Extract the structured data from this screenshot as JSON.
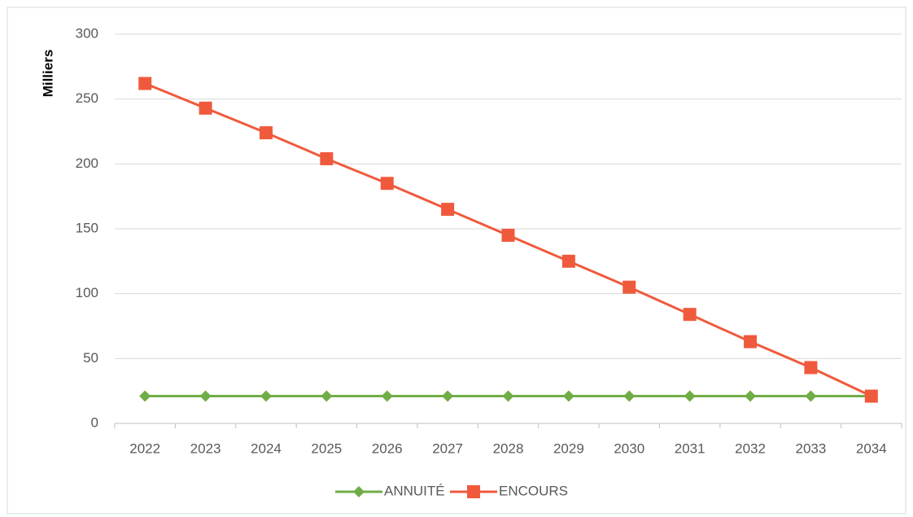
{
  "chart_data": {
    "type": "line",
    "y_label": "Milliers",
    "categories": [
      "2022",
      "2023",
      "2024",
      "2025",
      "2026",
      "2027",
      "2028",
      "2029",
      "2030",
      "2031",
      "2032",
      "2033",
      "2034"
    ],
    "series": [
      {
        "name": "ANNUITÉ",
        "color": "#70ad47",
        "marker": "diamond",
        "values": [
          21,
          21,
          21,
          21,
          21,
          21,
          21,
          21,
          21,
          21,
          21,
          21,
          21
        ]
      },
      {
        "name": "ENCOURS",
        "color": "#f05a3c",
        "marker": "square",
        "values": [
          262,
          243,
          224,
          204,
          185,
          165,
          145,
          125,
          105,
          84,
          63,
          43,
          21
        ]
      }
    ],
    "ylim": [
      0,
      300
    ],
    "yticks": [
      0,
      50,
      100,
      150,
      200,
      250,
      300
    ],
    "grid": true,
    "legend": "bottom"
  }
}
